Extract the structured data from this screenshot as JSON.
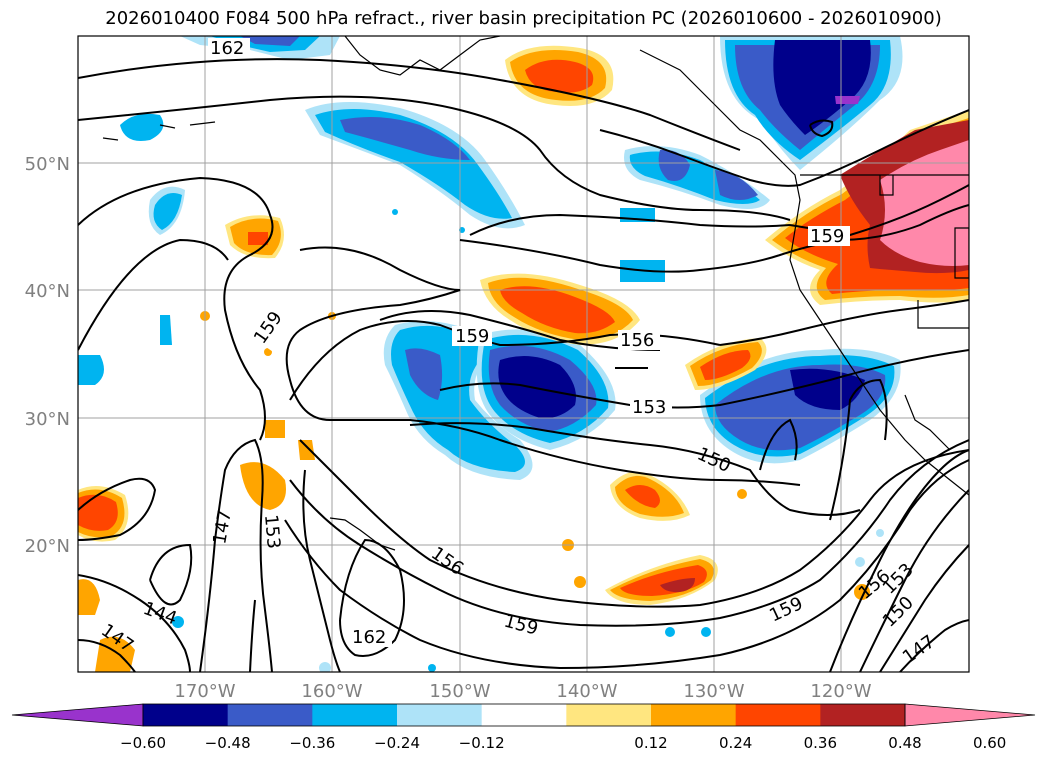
{
  "title": "2026010400 F084 500 hPa refract., river basin precipitation PC (2026010600 - 2026010900)",
  "lat_labels": [
    "50°N",
    "40°N",
    "30°N",
    "20°N"
  ],
  "lon_labels": [
    "170°W",
    "160°W",
    "150°W",
    "140°W",
    "130°W",
    "120°W"
  ],
  "contour_labels": [
    "162",
    "159",
    "159",
    "156",
    "153",
    "150",
    "147",
    "153",
    "156",
    "159",
    "144",
    "147",
    "162",
    "159",
    "156",
    "153",
    "150",
    "147"
  ],
  "colorbar": {
    "ticks": [
      "−0.60",
      "−0.48",
      "−0.36",
      "−0.24",
      "−0.12",
      "0.12",
      "0.24",
      "0.36",
      "0.48",
      "0.60"
    ],
    "colors": [
      "#9933cc",
      "#00008b",
      "#3a5bc8",
      "#00b4f0",
      "#aee3f8",
      "#ffffff",
      "#ffe680",
      "#ffa500",
      "#ff4500",
      "#b22222",
      "#ff88aa"
    ]
  },
  "map": {
    "lon_range": [
      -180,
      -110
    ],
    "lat_range": [
      10,
      60
    ],
    "fill_colors": {
      "dark_blue": "#00008b",
      "mid_blue": "#3a5bc8",
      "cyan": "#00b4f0",
      "light_blue": "#aee3f8",
      "light_yellow": "#ffe680",
      "orange": "#ffa500",
      "red_orange": "#ff4500",
      "dark_red": "#b22222",
      "pink": "#ff88aa",
      "purple": "#9933cc"
    }
  }
}
